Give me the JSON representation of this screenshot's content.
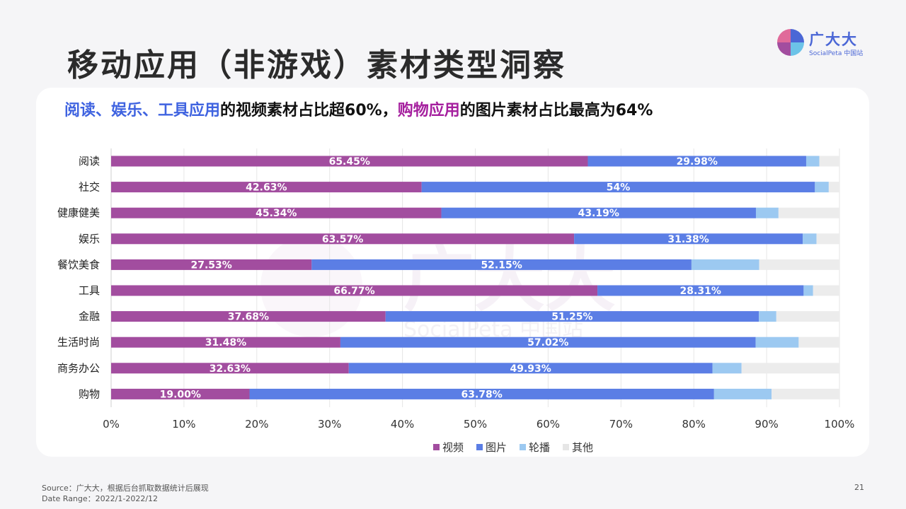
{
  "page": {
    "title": "移动应用（非游戏）素材类型洞察",
    "headline": {
      "part1": "阅读、娱乐、工具应用",
      "part2": "的视频素材占比超60%，",
      "part3": "购物应用",
      "part4": "的图片素材占比最高为64%"
    },
    "logo": {
      "name": "广大大",
      "sub": "SocialPeta 中国站",
      "watermark": "广大大",
      "watermark_sub": "SocialPeta 中国站"
    },
    "footer": {
      "source": "Source：广大大，根据后台抓取数据统计后展现",
      "date_range": "Date Range：2022/1-2022/12",
      "page_number": "21"
    }
  },
  "colors": {
    "video": "#a24d9f",
    "image": "#5b7ee5",
    "carousel": "#9cc9f1",
    "other": "#ececec",
    "headline_blue": "#3f63e0",
    "headline_purple": "#a51f9e"
  },
  "chart_data": {
    "type": "bar",
    "orientation": "horizontal",
    "stacked": true,
    "categories": [
      "阅读",
      "社交",
      "健康健美",
      "娱乐",
      "餐饮美食",
      "工具",
      "金融",
      "生活时尚",
      "商务办公",
      "购物"
    ],
    "series": [
      {
        "name": "视频",
        "values": [
          65.45,
          42.63,
          45.34,
          63.57,
          27.53,
          66.77,
          37.68,
          31.48,
          32.63,
          19.0
        ]
      },
      {
        "name": "图片",
        "values": [
          29.98,
          54.0,
          43.19,
          31.38,
          52.15,
          28.31,
          51.25,
          57.02,
          49.93,
          63.78
        ]
      },
      {
        "name": "轮播",
        "values": [
          1.8,
          1.9,
          3.1,
          1.9,
          9.3,
          1.3,
          2.4,
          5.9,
          4.0,
          7.9
        ]
      },
      {
        "name": "其他",
        "values": [
          2.77,
          1.47,
          8.37,
          3.15,
          11.02,
          3.62,
          8.67,
          5.6,
          13.44,
          9.32
        ]
      }
    ],
    "data_labels": {
      "视频": [
        "65.45%",
        "42.63%",
        "45.34%",
        "63.57%",
        "27.53%",
        "66.77%",
        "37.68%",
        "31.48%",
        "32.63%",
        "19.00%"
      ],
      "图片": [
        "29.98%",
        "54%",
        "43.19%",
        "31.38%",
        "52.15%",
        "28.31%",
        "51.25%",
        "57.02%",
        "49.93%",
        "63.78%"
      ]
    },
    "x_ticks": [
      "0%",
      "10%",
      "20%",
      "30%",
      "40%",
      "50%",
      "60%",
      "70%",
      "80%",
      "90%",
      "100%"
    ],
    "xlim": [
      0,
      100
    ],
    "grid": true,
    "legend": "bottom"
  }
}
